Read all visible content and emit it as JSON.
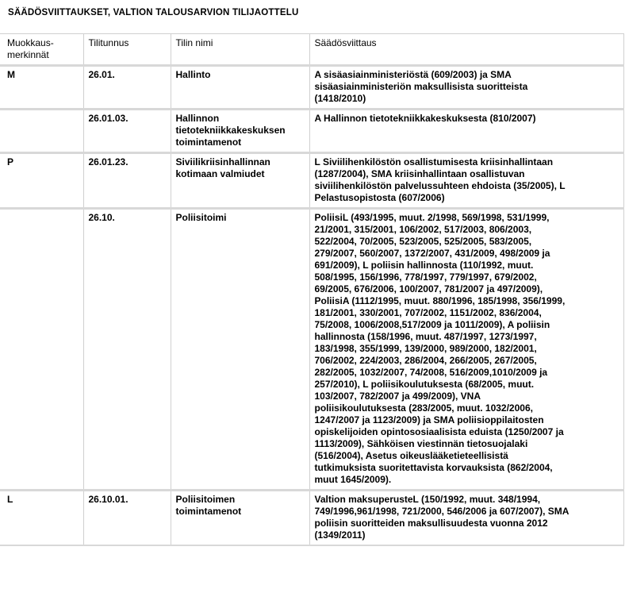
{
  "title": "SÄÄDÖSVIITTAUKSET, VALTION TALOUSARVION TILIJAOTTELU",
  "columns": [
    [
      "Muokkaus-",
      "merkinnät"
    ],
    [
      "Tilitunnus"
    ],
    [
      "Tilin nimi"
    ],
    [
      "Säädösviittaus"
    ]
  ],
  "rows": [
    {
      "mark": [
        "M"
      ],
      "account": [
        "26.01."
      ],
      "name": [
        "Hallinto"
      ],
      "reference": [
        "A  sisäasiainministeriöstä (609/2003) ja SMA",
        "sisäasiainministeriön maksullisista suoritteista",
        "(1418/2010)"
      ]
    },
    {
      "mark": [
        ""
      ],
      "account": [
        "26.01.03."
      ],
      "name": [
        "Hallinnon",
        "tietotekniikkakeskuksen",
        "toimintamenot"
      ],
      "reference": [
        "A Hallinnon tietotekniikkakeskuksesta (810/2007)"
      ]
    },
    {
      "mark": [
        "P"
      ],
      "account": [
        "26.01.23."
      ],
      "name": [
        "Siviilikriisinhallinnan",
        "kotimaan valmiudet"
      ],
      "reference": [
        "L Siviilihenkilöstön osallistumisesta kriisinhallintaan",
        "(1287/2004), SMA kriisinhallintaan osallistuvan",
        "siviilihenkilöstön palvelussuhteen ehdoista (35/2005), L",
        "Pelastusopistosta (607/2006)"
      ]
    },
    {
      "mark": [
        ""
      ],
      "account": [
        "26.10."
      ],
      "name": [
        "Poliisitoimi"
      ],
      "reference": [
        "PoliisiL  (493/1995, muut. 2/1998, 569/1998, 531/1999,",
        "21/2001, 315/2001, 106/2002, 517/2003, 806/2003,",
        "522/2004, 70/2005, 523/2005, 525/2005, 583/2005,",
        "279/2007, 560/2007,  1372/2007, 431/2009, 498/2009 ja",
        "691/2009),  L  poliisin hallinnosta (110/1992, muut.",
        "508/1995, 156/1996, 778/1997,  779/1997, 679/2002,",
        "69/2005, 676/2006, 100/2007, 781/2007 ja 497/2009),",
        "PoliisiA (1112/1995, muut. 880/1996, 185/1998, 356/1999,",
        "181/2001, 330/2001, 707/2002, 1151/2002, 836/2004,",
        "75/2008, 1006/2008,517/2009 ja 1011/2009), A poliisin",
        "hallinnosta (158/1996,  muut. 487/1997, 1273/1997,",
        "183/1998,  355/1999, 139/2000, 989/2000, 182/2001,",
        "706/2002, 224/2003, 286/2004, 266/2005, 267/2005,",
        "282/2005, 1032/2007, 74/2008,  516/2009,1010/2009 ja",
        "257/2010), L poliisikoulutuksesta (68/2005, muut.",
        "103/2007, 782/2007 ja 499/2009), VNA",
        "poliisikoulutuksesta (283/2005, muut. 1032/2006,",
        "1247/2007 ja 1123/2009) ja SMA poliisioppilaitosten",
        "opiskelijoiden opintososiaalisista eduista (1250/2007 ja",
        "1113/2009), Sähköisen viestinnän tietosuojalaki",
        "(516/2004), Asetus oikeuslääketieteellisistä",
        "tutkimuksista suoritettavista korvauksista (862/2004,",
        "muut 1645/2009)."
      ]
    },
    {
      "mark": [
        "L"
      ],
      "account": [
        "26.10.01."
      ],
      "name": [
        "Poliisitoimen",
        "toimintamenot"
      ],
      "reference": [
        "Valtion maksuperusteL (150/1992,  muut. 348/1994,",
        "749/1996,961/1998, 721/2000, 546/2006 ja 607/2007), SMA",
        "poliisin suoritteiden maksullisuudesta vuonna 2012",
        "(1349/2011)"
      ]
    }
  ]
}
